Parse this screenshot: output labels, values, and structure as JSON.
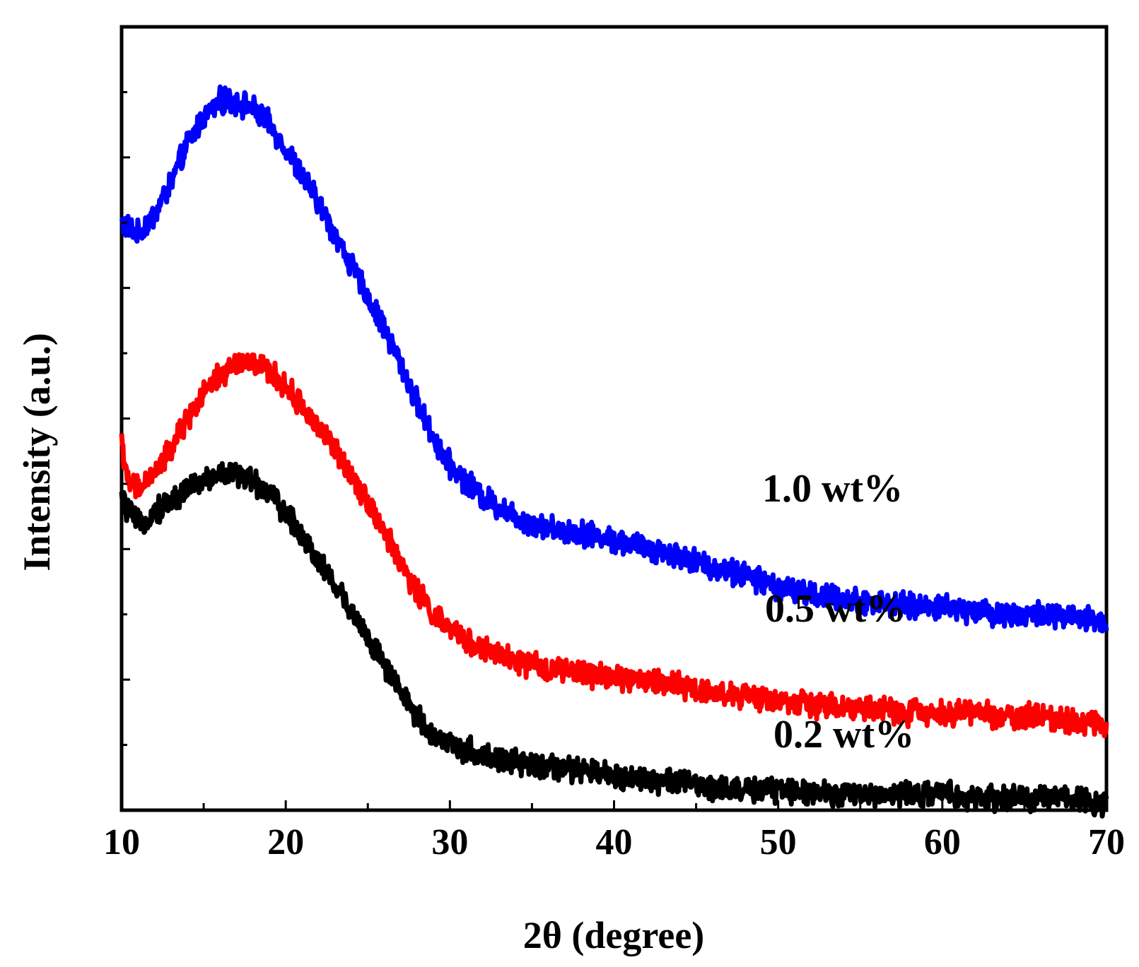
{
  "chart_data": {
    "type": "line",
    "title": "",
    "xlabel": "2θ (degree)",
    "ylabel": "Intensity (a.u.)",
    "xlim": [
      10,
      70
    ],
    "ylim": [
      0,
      100
    ],
    "xticks": [
      "10",
      "20",
      "30",
      "40",
      "50",
      "60",
      "70"
    ],
    "y_ticks_labeled": false,
    "grid": false,
    "legend": "inline labels at right",
    "series": [
      {
        "name": "1.0 wt%",
        "label": "1.0 wt%",
        "color": "#0000ff",
        "x": [
          10,
          11,
          12,
          13,
          14,
          15,
          16,
          17,
          18,
          19,
          20,
          21,
          22,
          23,
          24,
          25,
          26,
          27,
          28,
          29,
          30,
          32,
          34,
          36,
          38,
          40,
          42,
          44,
          46,
          48,
          50,
          52,
          54,
          56,
          58,
          60,
          62,
          64,
          66,
          68,
          70
        ],
        "y": [
          75.0,
          73.5,
          76.0,
          80.0,
          85.0,
          88.5,
          90.5,
          90.5,
          89.5,
          87.5,
          84.5,
          81.0,
          77.5,
          73.5,
          69.5,
          65.5,
          61.5,
          57.0,
          52.0,
          47.5,
          44.0,
          40.0,
          37.5,
          36.0,
          35.5,
          34.5,
          33.5,
          32.5,
          31.0,
          30.0,
          28.5,
          27.5,
          27.0,
          26.5,
          26.0,
          26.0,
          25.5,
          25.0,
          25.0,
          24.5,
          24.0
        ]
      },
      {
        "name": "0.5 wt%",
        "label": "0.5 wt%",
        "color": "#ff0000",
        "x": [
          10,
          10.3,
          11,
          12,
          13,
          14,
          15,
          16,
          17,
          18,
          19,
          20,
          21,
          22,
          23,
          24,
          25,
          26,
          27,
          28,
          29,
          30,
          32,
          34,
          36,
          38,
          40,
          42,
          44,
          46,
          48,
          50,
          52,
          54,
          56,
          58,
          60,
          62,
          64,
          66,
          68,
          70
        ],
        "y": [
          48.0,
          42.0,
          41.0,
          43.0,
          46.0,
          50.0,
          53.0,
          55.5,
          57.0,
          57.0,
          56.0,
          54.0,
          51.5,
          49.0,
          46.0,
          43.0,
          39.5,
          35.5,
          31.5,
          28.0,
          25.0,
          23.0,
          20.5,
          19.0,
          18.0,
          17.5,
          17.0,
          16.5,
          16.0,
          15.0,
          14.5,
          14.0,
          13.5,
          13.0,
          13.0,
          12.5,
          12.5,
          12.5,
          12.0,
          12.0,
          11.5,
          11.0
        ]
      },
      {
        "name": "0.2 wt%",
        "label": "0.2 wt%",
        "color": "#000000",
        "x": [
          10,
          11,
          12,
          13,
          14,
          15,
          16,
          17,
          18,
          19,
          20,
          21,
          22,
          23,
          24,
          25,
          26,
          27,
          28,
          29,
          30,
          32,
          34,
          36,
          38,
          40,
          42,
          44,
          46,
          48,
          50,
          52,
          54,
          56,
          58,
          60,
          62,
          64,
          66,
          68,
          70
        ],
        "y": [
          39.5,
          36.5,
          38.0,
          39.5,
          41.0,
          42.0,
          43.0,
          43.0,
          42.0,
          40.5,
          38.0,
          35.0,
          32.0,
          28.5,
          25.5,
          22.0,
          18.5,
          15.0,
          12.0,
          9.5,
          8.5,
          7.0,
          6.0,
          5.5,
          5.0,
          4.5,
          4.0,
          3.5,
          3.0,
          2.5,
          2.5,
          2.5,
          2.0,
          2.0,
          2.0,
          2.0,
          1.5,
          1.5,
          1.5,
          1.5,
          1.0
        ]
      }
    ]
  }
}
